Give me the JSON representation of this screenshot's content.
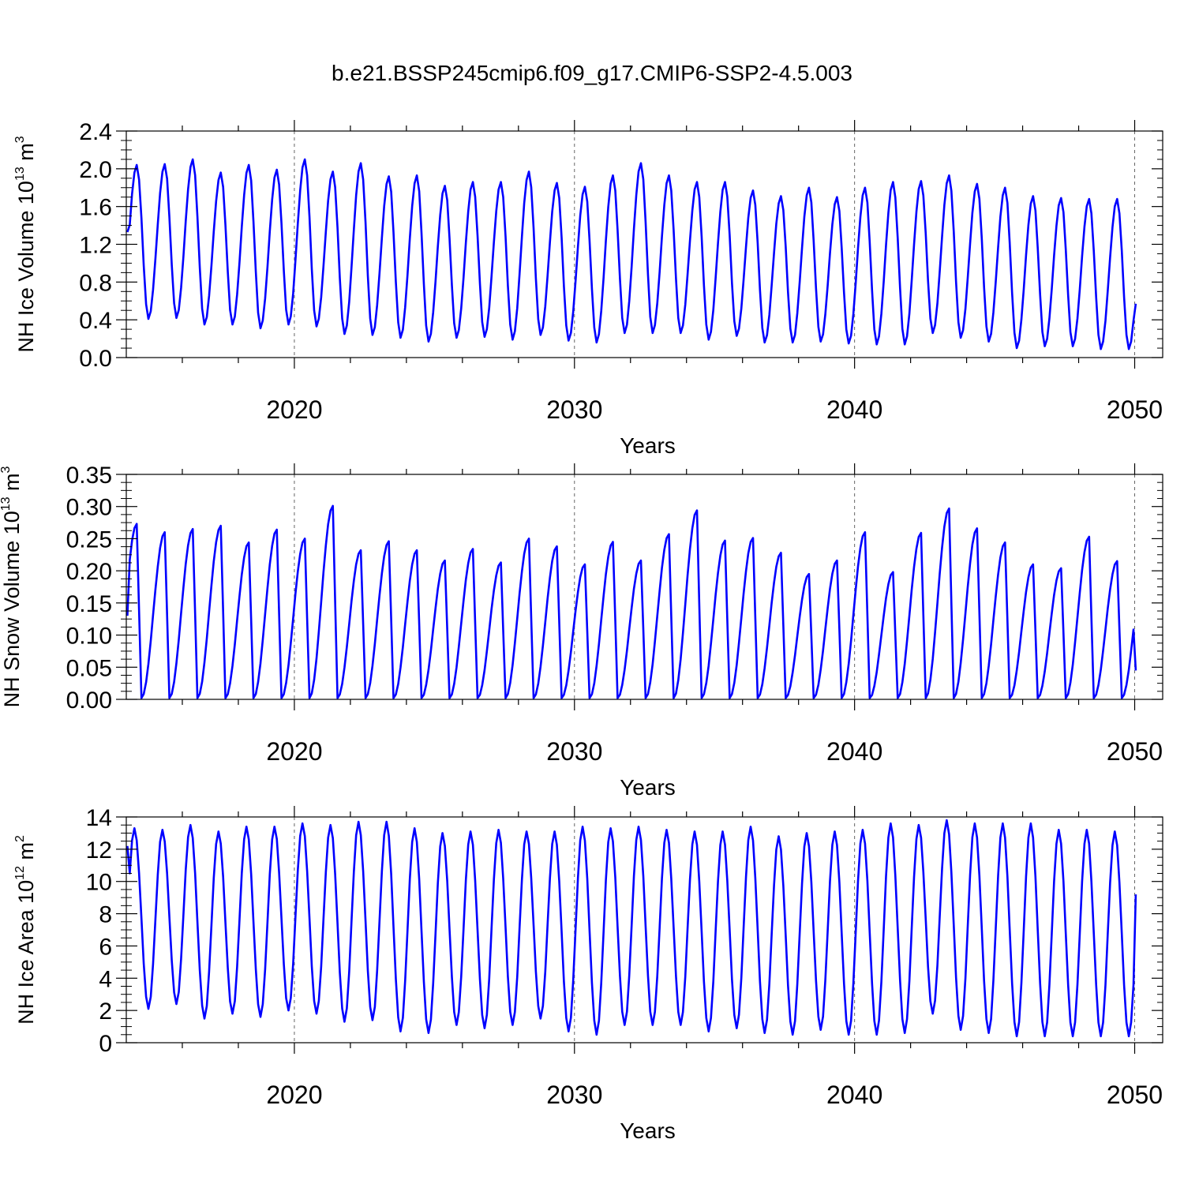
{
  "figure_title": "b.e21.BSSP245cmip6.f09_g17.CMIP6-SSP2-4.5.003",
  "chart_data": [
    {
      "type": "line",
      "ylabel": "NH Ice Volume 10",
      "ylabel_exp": "13",
      "ylabel_unit": " m",
      "ylabel_unit_exp": "3",
      "xlabel": "Years",
      "xlim": [
        2014.0,
        2051.0
      ],
      "ylim": [
        0.0,
        2.4
      ],
      "xticks": [
        2020,
        2030,
        2040,
        2050
      ],
      "xtick_labels": [
        "2020",
        "2030",
        "2040",
        "2050"
      ],
      "yticks": [
        0.0,
        0.4,
        0.8,
        1.2,
        1.6,
        2.0,
        2.4
      ],
      "ytick_labels": [
        "0.0",
        "0.4",
        "0.8",
        "1.2",
        "1.6",
        "2.0",
        "2.4"
      ],
      "x_start": 2014.04,
      "x_end": 2050.04,
      "peak_month": 4,
      "trough_month": 9,
      "start_value": 1.33,
      "end_value": 0.57,
      "annual_max": [
        2.04,
        2.05,
        2.1,
        1.96,
        2.04,
        1.99,
        2.1,
        1.97,
        2.06,
        1.92,
        1.93,
        1.82,
        1.86,
        1.86,
        1.97,
        1.85,
        1.81,
        1.93,
        2.06,
        1.93,
        1.86,
        1.86,
        1.77,
        1.71,
        1.8,
        1.7,
        1.8,
        1.86,
        1.87,
        1.93,
        1.84,
        1.8,
        1.71,
        1.69,
        1.68,
        1.68
      ],
      "annual_min": [
        0.41,
        0.42,
        0.35,
        0.35,
        0.31,
        0.35,
        0.33,
        0.25,
        0.24,
        0.21,
        0.17,
        0.21,
        0.22,
        0.19,
        0.24,
        0.18,
        0.16,
        0.26,
        0.26,
        0.26,
        0.19,
        0.23,
        0.16,
        0.16,
        0.17,
        0.15,
        0.14,
        0.14,
        0.26,
        0.21,
        0.17,
        0.1,
        0.12,
        0.12,
        0.09,
        0.09
      ]
    },
    {
      "type": "line",
      "ylabel": "NH Snow Volume 10",
      "ylabel_exp": "13",
      "ylabel_unit": " m",
      "ylabel_unit_exp": "3",
      "xlabel": "Years",
      "xlim": [
        2014.0,
        2051.0
      ],
      "ylim": [
        0.0,
        0.35
      ],
      "xticks": [
        2020,
        2030,
        2040,
        2050
      ],
      "xtick_labels": [
        "2020",
        "2030",
        "2040",
        "2050"
      ],
      "yticks": [
        0.0,
        0.05,
        0.1,
        0.15,
        0.2,
        0.25,
        0.3,
        0.35
      ],
      "ytick_labels": [
        "0.00",
        "0.05",
        "0.10",
        "0.15",
        "0.20",
        "0.25",
        "0.30",
        "0.35"
      ],
      "x_start": 2014.04,
      "x_end": 2050.04,
      "peak_month": 4,
      "trough_month": 6,
      "start_value": 0.13,
      "end_value": 0.045,
      "annual_max": [
        0.273,
        0.26,
        0.265,
        0.27,
        0.244,
        0.264,
        0.25,
        0.301,
        0.232,
        0.246,
        0.232,
        0.216,
        0.234,
        0.213,
        0.25,
        0.238,
        0.21,
        0.245,
        0.216,
        0.257,
        0.294,
        0.247,
        0.251,
        0.228,
        0.195,
        0.216,
        0.26,
        0.198,
        0.259,
        0.297,
        0.266,
        0.244,
        0.21,
        0.204,
        0.253,
        0.215
      ],
      "annual_min": [
        0.002,
        0.002,
        0.002,
        0.002,
        0.002,
        0.002,
        0.002,
        0.002,
        0.002,
        0.002,
        0.002,
        0.002,
        0.002,
        0.002,
        0.002,
        0.002,
        0.002,
        0.002,
        0.002,
        0.002,
        0.002,
        0.002,
        0.002,
        0.002,
        0.002,
        0.002,
        0.002,
        0.002,
        0.002,
        0.002,
        0.002,
        0.002,
        0.002,
        0.002,
        0.002,
        0.002
      ]
    },
    {
      "type": "line",
      "ylabel": "NH Ice Area 10",
      "ylabel_exp": "12",
      "ylabel_unit": " m",
      "ylabel_unit_exp": "2",
      "xlabel": "Years",
      "xlim": [
        2014.0,
        2051.0
      ],
      "ylim": [
        0,
        14
      ],
      "xticks": [
        2020,
        2030,
        2040,
        2050
      ],
      "xtick_labels": [
        "2020",
        "2030",
        "2040",
        "2050"
      ],
      "yticks": [
        0,
        2,
        4,
        6,
        8,
        10,
        12,
        14
      ],
      "ytick_labels": [
        "0",
        "2",
        "4",
        "6",
        "8",
        "10",
        "12",
        "14"
      ],
      "x_start": 2014.04,
      "x_end": 2050.04,
      "peak_month": 3,
      "trough_month": 9,
      "start_value": 12.2,
      "end_value": 9.2,
      "annual_max": [
        13.3,
        13.2,
        13.5,
        13.1,
        13.4,
        13.4,
        13.6,
        13.5,
        13.7,
        13.7,
        13.3,
        13.0,
        13.1,
        13.2,
        13.1,
        13.1,
        13.4,
        13.3,
        13.4,
        13.2,
        13.1,
        13.1,
        13.4,
        12.8,
        13.0,
        13.1,
        13.2,
        13.6,
        13.5,
        13.8,
        13.6,
        13.6,
        13.6,
        13.2,
        13.2,
        13.1
      ],
      "annual_min": [
        2.1,
        2.4,
        1.5,
        1.8,
        1.6,
        2.0,
        1.8,
        1.3,
        1.4,
        0.7,
        0.6,
        1.1,
        0.9,
        1.1,
        1.5,
        0.7,
        0.5,
        1.1,
        1.1,
        1.1,
        0.7,
        0.9,
        0.6,
        0.5,
        0.8,
        0.5,
        0.5,
        0.6,
        1.8,
        0.8,
        0.6,
        0.4,
        0.4,
        0.4,
        0.4,
        0.4
      ]
    }
  ]
}
